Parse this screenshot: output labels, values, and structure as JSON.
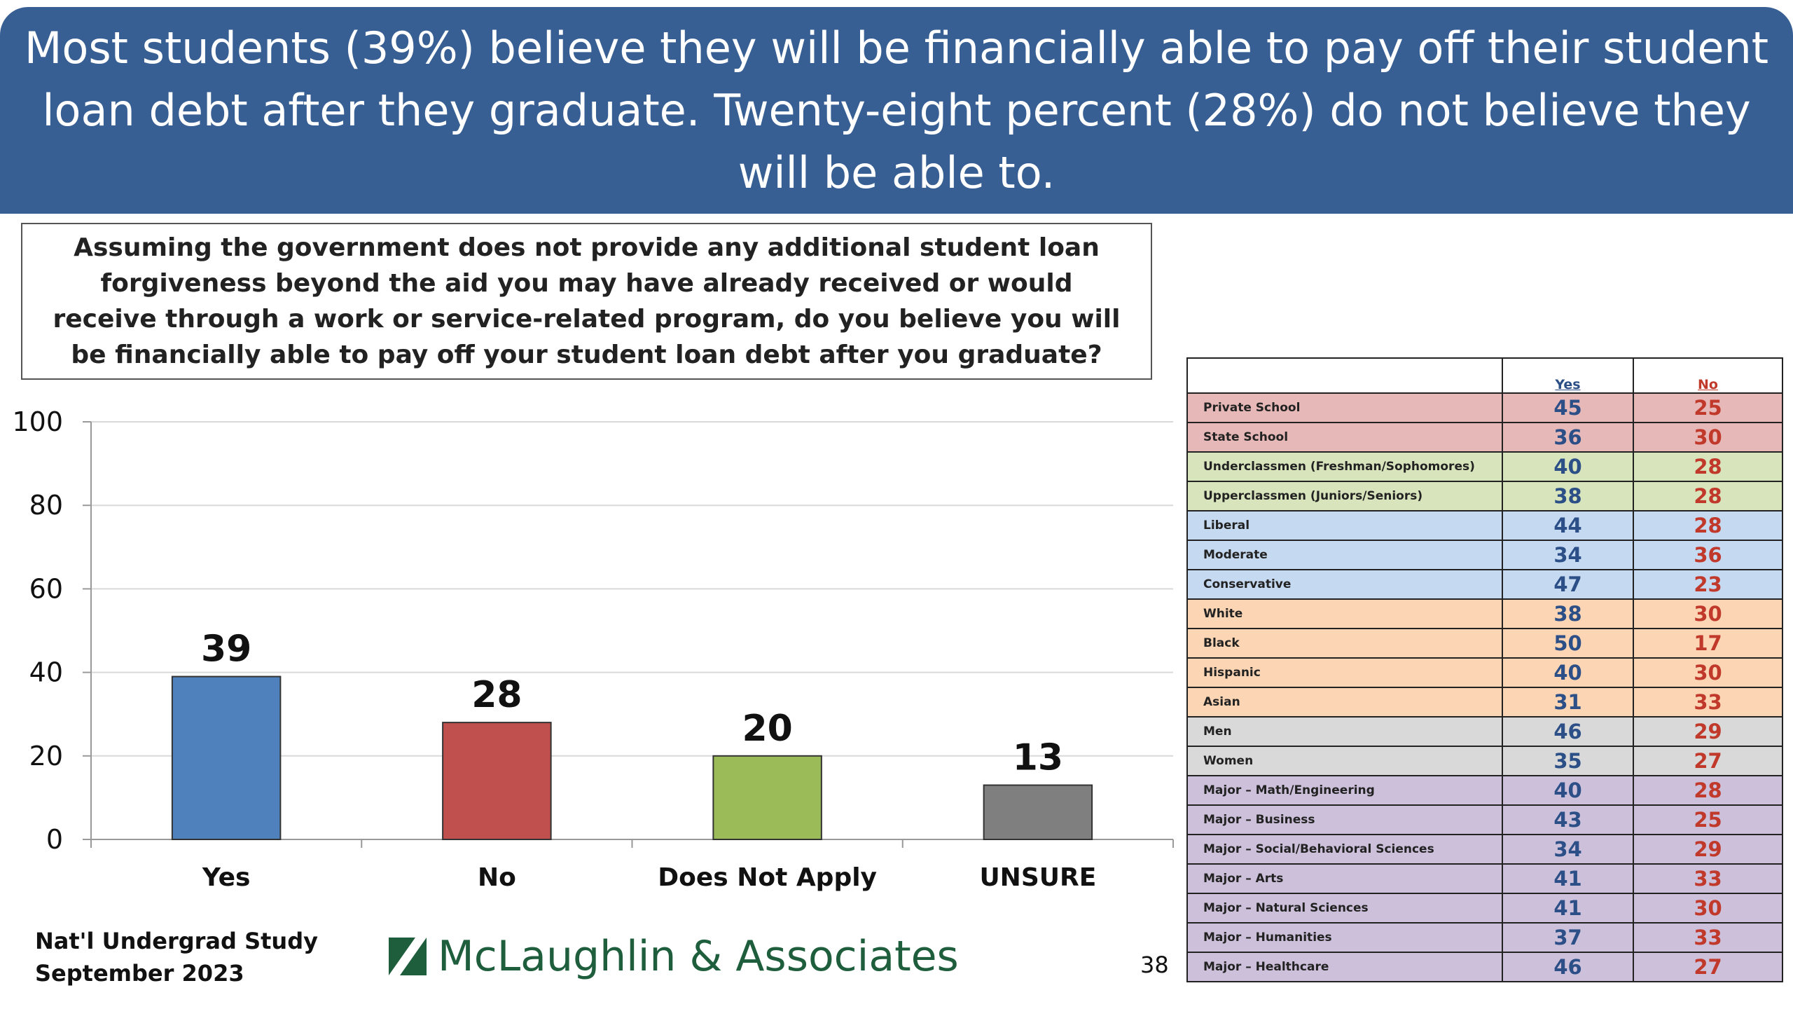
{
  "header": {
    "title": "Most students (39%) believe they will be financially able to pay off their student loan debt after they graduate. Twenty-eight percent (28%) do not believe they will be able to."
  },
  "question": "Assuming the government does not provide any additional student loan forgiveness beyond the aid you may have already received or would receive through a work or service-related program, do you believe you will be financially able to pay off your student loan debt after you graduate?",
  "chart_data": {
    "type": "bar",
    "categories": [
      "Yes",
      "No",
      "Does Not Apply",
      "UNSURE"
    ],
    "values": [
      39,
      28,
      20,
      13
    ],
    "colors": [
      "#4f81bd",
      "#c0504d",
      "#9bbb59",
      "#7f7f7f"
    ],
    "ylim": [
      0,
      100
    ],
    "yticks": [
      "0",
      "20",
      "40",
      "60",
      "80",
      "100"
    ],
    "grid": true,
    "data_labels": true
  },
  "crosstab": {
    "headers": {
      "yes": "Yes",
      "no": "No"
    },
    "rows": [
      {
        "label": "Private School",
        "yes": "45",
        "no": "25",
        "color": "#e6b8b7"
      },
      {
        "label": "State School",
        "yes": "36",
        "no": "30",
        "color": "#e6b8b7"
      },
      {
        "label": "Underclassmen (Freshman/Sophomores)",
        "yes": "40",
        "no": "28",
        "color": "#d8e4bc"
      },
      {
        "label": "Upperclassmen (Juniors/Seniors)",
        "yes": "38",
        "no": "28",
        "color": "#d8e4bc"
      },
      {
        "label": "Liberal",
        "yes": "44",
        "no": "28",
        "color": "#c5d9f1"
      },
      {
        "label": "Moderate",
        "yes": "34",
        "no": "36",
        "color": "#c5d9f1"
      },
      {
        "label": "Conservative",
        "yes": "47",
        "no": "23",
        "color": "#c5d9f1"
      },
      {
        "label": "White",
        "yes": "38",
        "no": "30",
        "color": "#fcd5b4"
      },
      {
        "label": "Black",
        "yes": "50",
        "no": "17",
        "color": "#fcd5b4"
      },
      {
        "label": "Hispanic",
        "yes": "40",
        "no": "30",
        "color": "#fcd5b4"
      },
      {
        "label": "Asian",
        "yes": "31",
        "no": "33",
        "color": "#fcd5b4"
      },
      {
        "label": "Men",
        "yes": "46",
        "no": "29",
        "color": "#d9d9d9"
      },
      {
        "label": "Women",
        "yes": "35",
        "no": "27",
        "color": "#d9d9d9"
      },
      {
        "label": "Major – Math/Engineering",
        "yes": "40",
        "no": "28",
        "color": "#ccc0da"
      },
      {
        "label": "Major – Business",
        "yes": "43",
        "no": "25",
        "color": "#ccc0da"
      },
      {
        "label": "Major – Social/Behavioral Sciences",
        "yes": "34",
        "no": "29",
        "color": "#ccc0da"
      },
      {
        "label": "Major – Arts",
        "yes": "41",
        "no": "33",
        "color": "#ccc0da"
      },
      {
        "label": "Major – Natural Sciences",
        "yes": "41",
        "no": "30",
        "color": "#ccc0da"
      },
      {
        "label": "Major – Humanities",
        "yes": "37",
        "no": "33",
        "color": "#ccc0da"
      },
      {
        "label": "Major – Healthcare",
        "yes": "46",
        "no": "27",
        "color": "#ccc0da"
      }
    ]
  },
  "footer": {
    "study_line1": "Nat'l Undergrad Study",
    "study_line2": "September 2023",
    "logo_text": "McLaughlin & Associates",
    "page_number": "38"
  }
}
